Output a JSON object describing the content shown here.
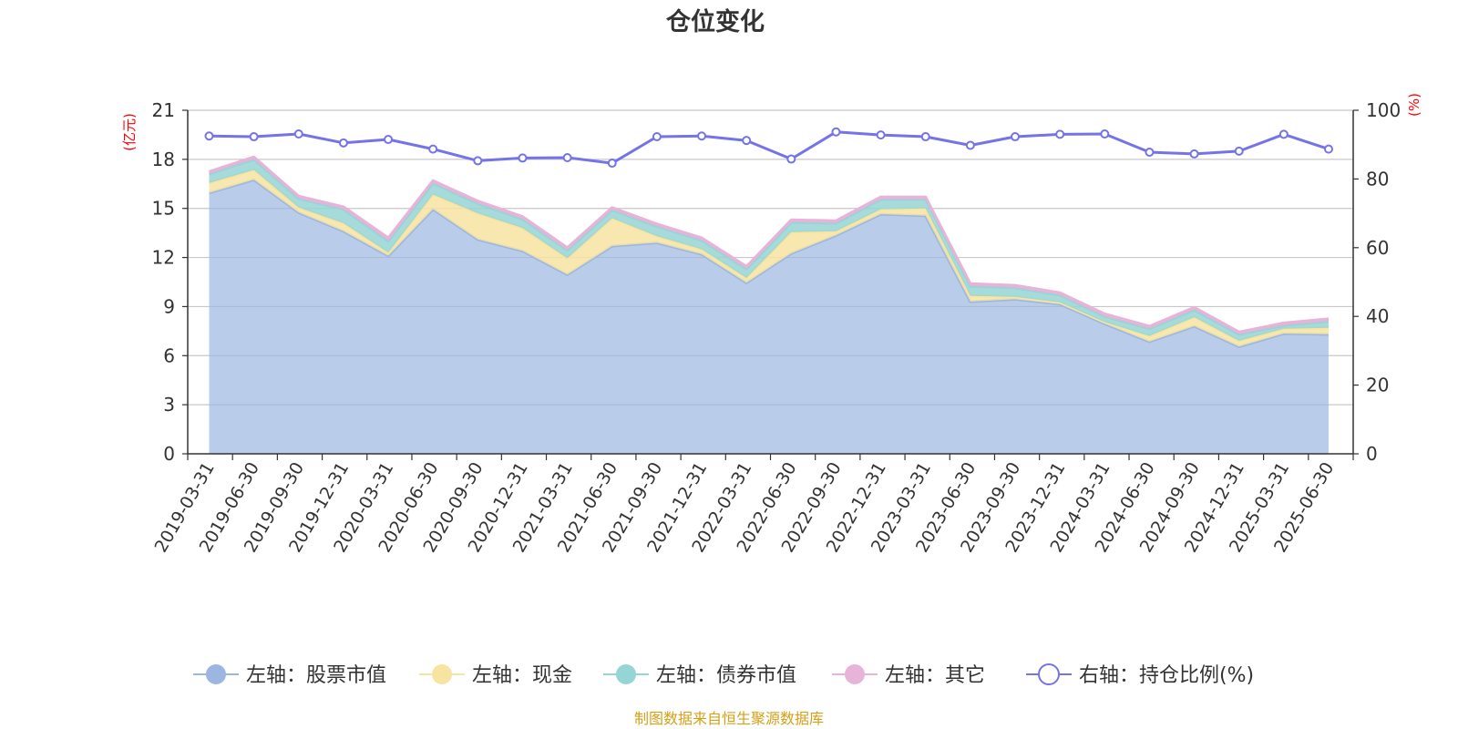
{
  "chart_data": {
    "type": "area",
    "title": "仓位变化",
    "left_unit": "(亿元)",
    "right_unit": "(%)",
    "left_ylim": [
      0,
      21
    ],
    "left_ticks": [
      "0",
      "3",
      "6",
      "9",
      "12",
      "15",
      "18",
      "21"
    ],
    "right_ylim": [
      0,
      100
    ],
    "right_ticks": [
      "0",
      "20",
      "40",
      "60",
      "80",
      "100"
    ],
    "grid": true,
    "legend_position": "bottom",
    "categories": [
      "2019-03-31",
      "2019-06-30",
      "2019-09-30",
      "2019-12-31",
      "2020-03-31",
      "2020-06-30",
      "2020-09-30",
      "2020-12-31",
      "2021-03-31",
      "2021-06-30",
      "2021-09-30",
      "2021-12-31",
      "2022-03-31",
      "2022-06-30",
      "2022-09-30",
      "2022-12-31",
      "2023-03-31",
      "2023-06-30",
      "2023-09-30",
      "2023-12-31",
      "2024-03-31",
      "2024-06-30",
      "2024-09-30",
      "2024-12-31",
      "2025-03-31",
      "2025-06-30"
    ],
    "series": [
      {
        "name": "左轴：股票市值",
        "axis": "left",
        "stack": true,
        "color": "#9bb6e0",
        "values": [
          15.95,
          16.75,
          14.75,
          13.6,
          12.1,
          14.95,
          13.1,
          12.4,
          10.95,
          12.7,
          12.9,
          12.2,
          10.45,
          12.25,
          13.35,
          14.65,
          14.55,
          9.3,
          9.45,
          9.15,
          7.95,
          6.85,
          7.8,
          6.55,
          7.35,
          7.3
        ]
      },
      {
        "name": "左轴：现金",
        "axis": "left",
        "stack": true,
        "color": "#f7e4a1",
        "values": [
          0.6,
          0.6,
          0.3,
          0.5,
          0.2,
          0.9,
          1.6,
          1.4,
          1.0,
          1.7,
          0.4,
          0.3,
          0.3,
          1.3,
          0.25,
          0.3,
          0.45,
          0.35,
          0.15,
          0.1,
          0.1,
          0.35,
          0.55,
          0.35,
          0.3,
          0.4
        ]
      },
      {
        "name": "左轴：债券市值",
        "axis": "left",
        "stack": true,
        "color": "#95d5d5",
        "values": [
          0.55,
          0.65,
          0.55,
          0.85,
          0.7,
          0.7,
          0.6,
          0.55,
          0.5,
          0.5,
          0.6,
          0.55,
          0.55,
          0.6,
          0.5,
          0.6,
          0.55,
          0.6,
          0.55,
          0.45,
          0.35,
          0.45,
          0.45,
          0.4,
          0.2,
          0.4
        ]
      },
      {
        "name": "左轴：其它",
        "axis": "left",
        "stack": true,
        "color": "#e8b3d8",
        "values": [
          0.15,
          0.15,
          0.15,
          0.15,
          0.2,
          0.15,
          0.15,
          0.15,
          0.15,
          0.15,
          0.15,
          0.15,
          0.15,
          0.15,
          0.15,
          0.15,
          0.15,
          0.15,
          0.15,
          0.15,
          0.15,
          0.15,
          0.15,
          0.15,
          0.15,
          0.15
        ]
      },
      {
        "name": "右轴：持仓比例(%)",
        "axis": "right",
        "stack": false,
        "color": "#7474e8",
        "values": [
          92.5,
          92.3,
          93.1,
          90.5,
          91.5,
          88.7,
          85.3,
          86.1,
          86.2,
          84.6,
          92.3,
          92.5,
          91.2,
          85.8,
          93.7,
          92.8,
          92.3,
          89.8,
          92.3,
          93.0,
          93.1,
          87.8,
          87.3,
          88.1,
          93.0,
          88.7
        ]
      }
    ]
  },
  "footer": {
    "source": "制图数据来自恒生聚源数据库"
  }
}
